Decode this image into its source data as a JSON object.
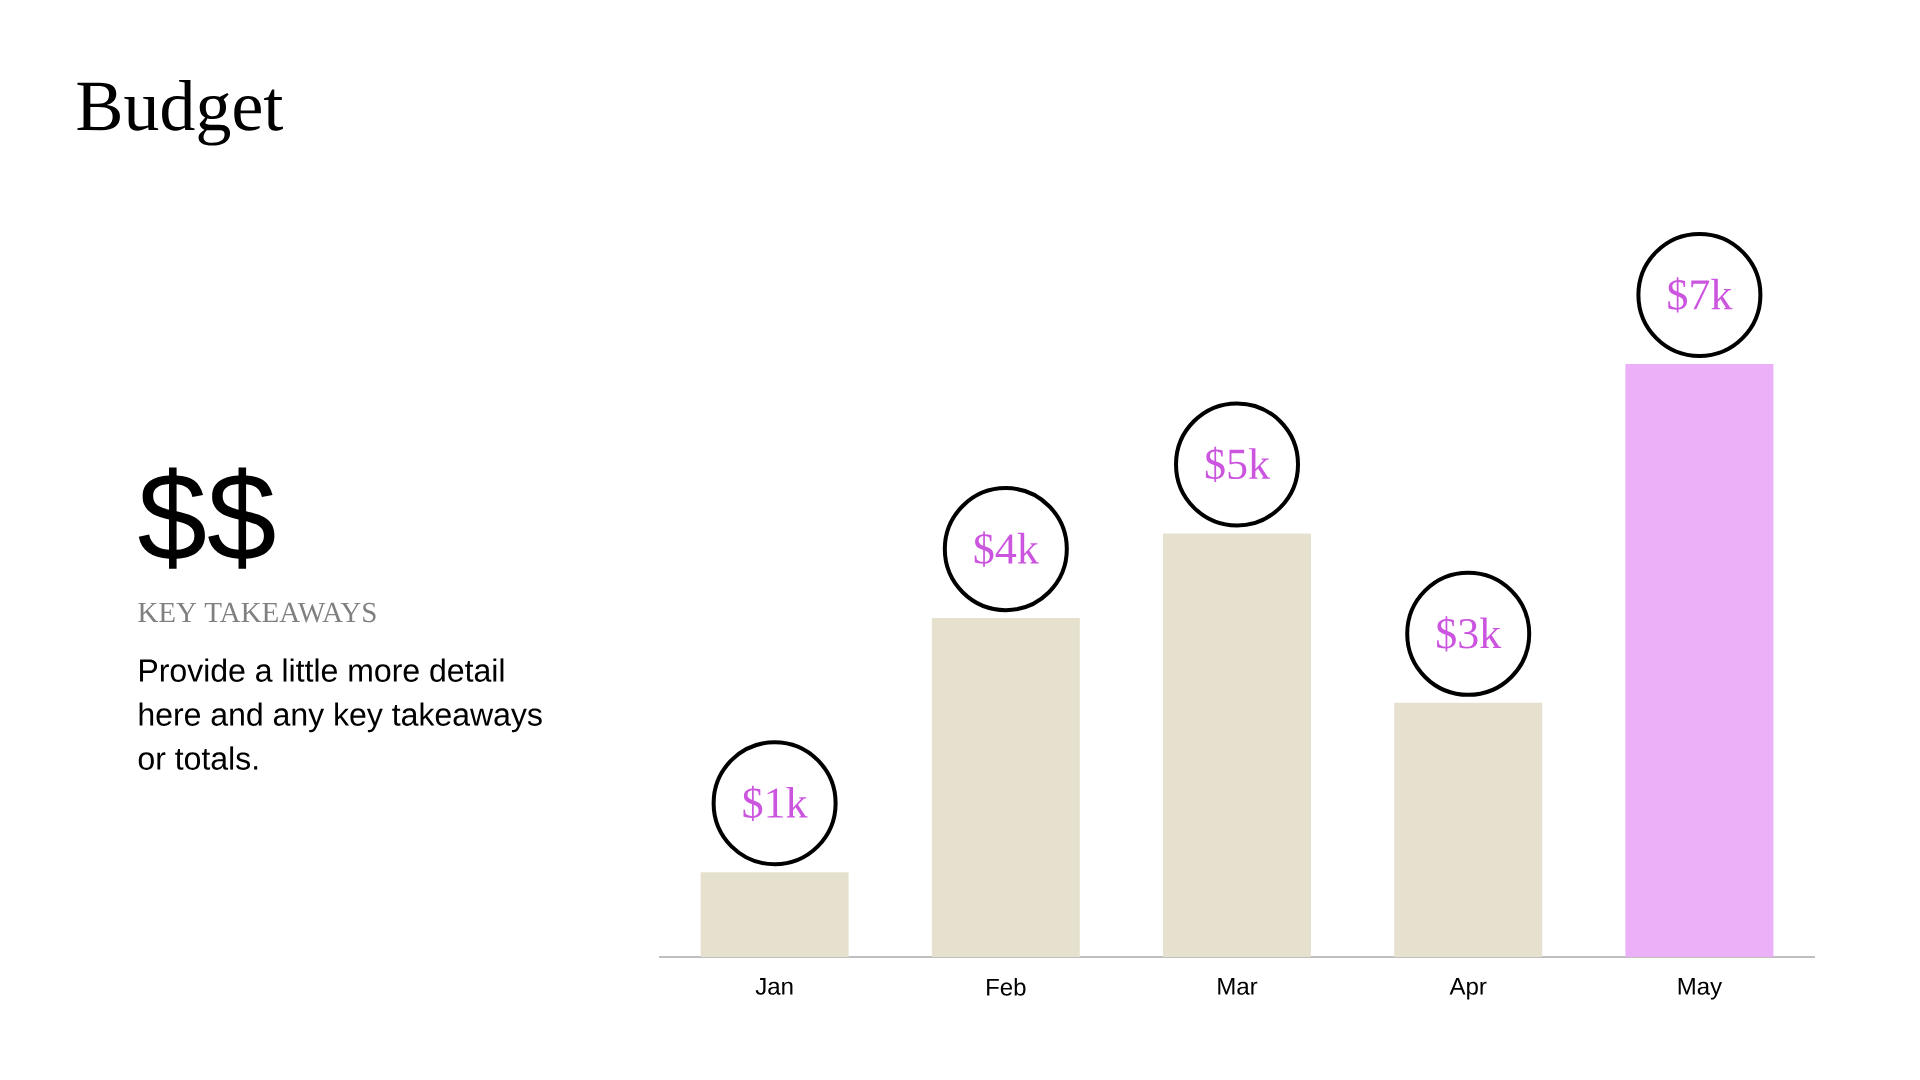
{
  "chart_data": {
    "type": "bar",
    "title": "Budget",
    "categories": [
      "Jan",
      "Feb",
      "Mar",
      "Apr",
      "May"
    ],
    "values": [
      1,
      4,
      5,
      3,
      7
    ],
    "colors": [
      "#e6e1cf",
      "#e6e1cf",
      "#e6e1cf",
      "#e6e1cf",
      "#ebb0f8"
    ],
    "value_labels": [
      "$1k",
      "$4k",
      "$5k",
      "$3k",
      "$7k"
    ],
    "annotations": [
      "$$",
      "KEY TAKEAWAYS",
      "Provide a little more detail here and any key takeaways or totals."
    ]
  }
}
